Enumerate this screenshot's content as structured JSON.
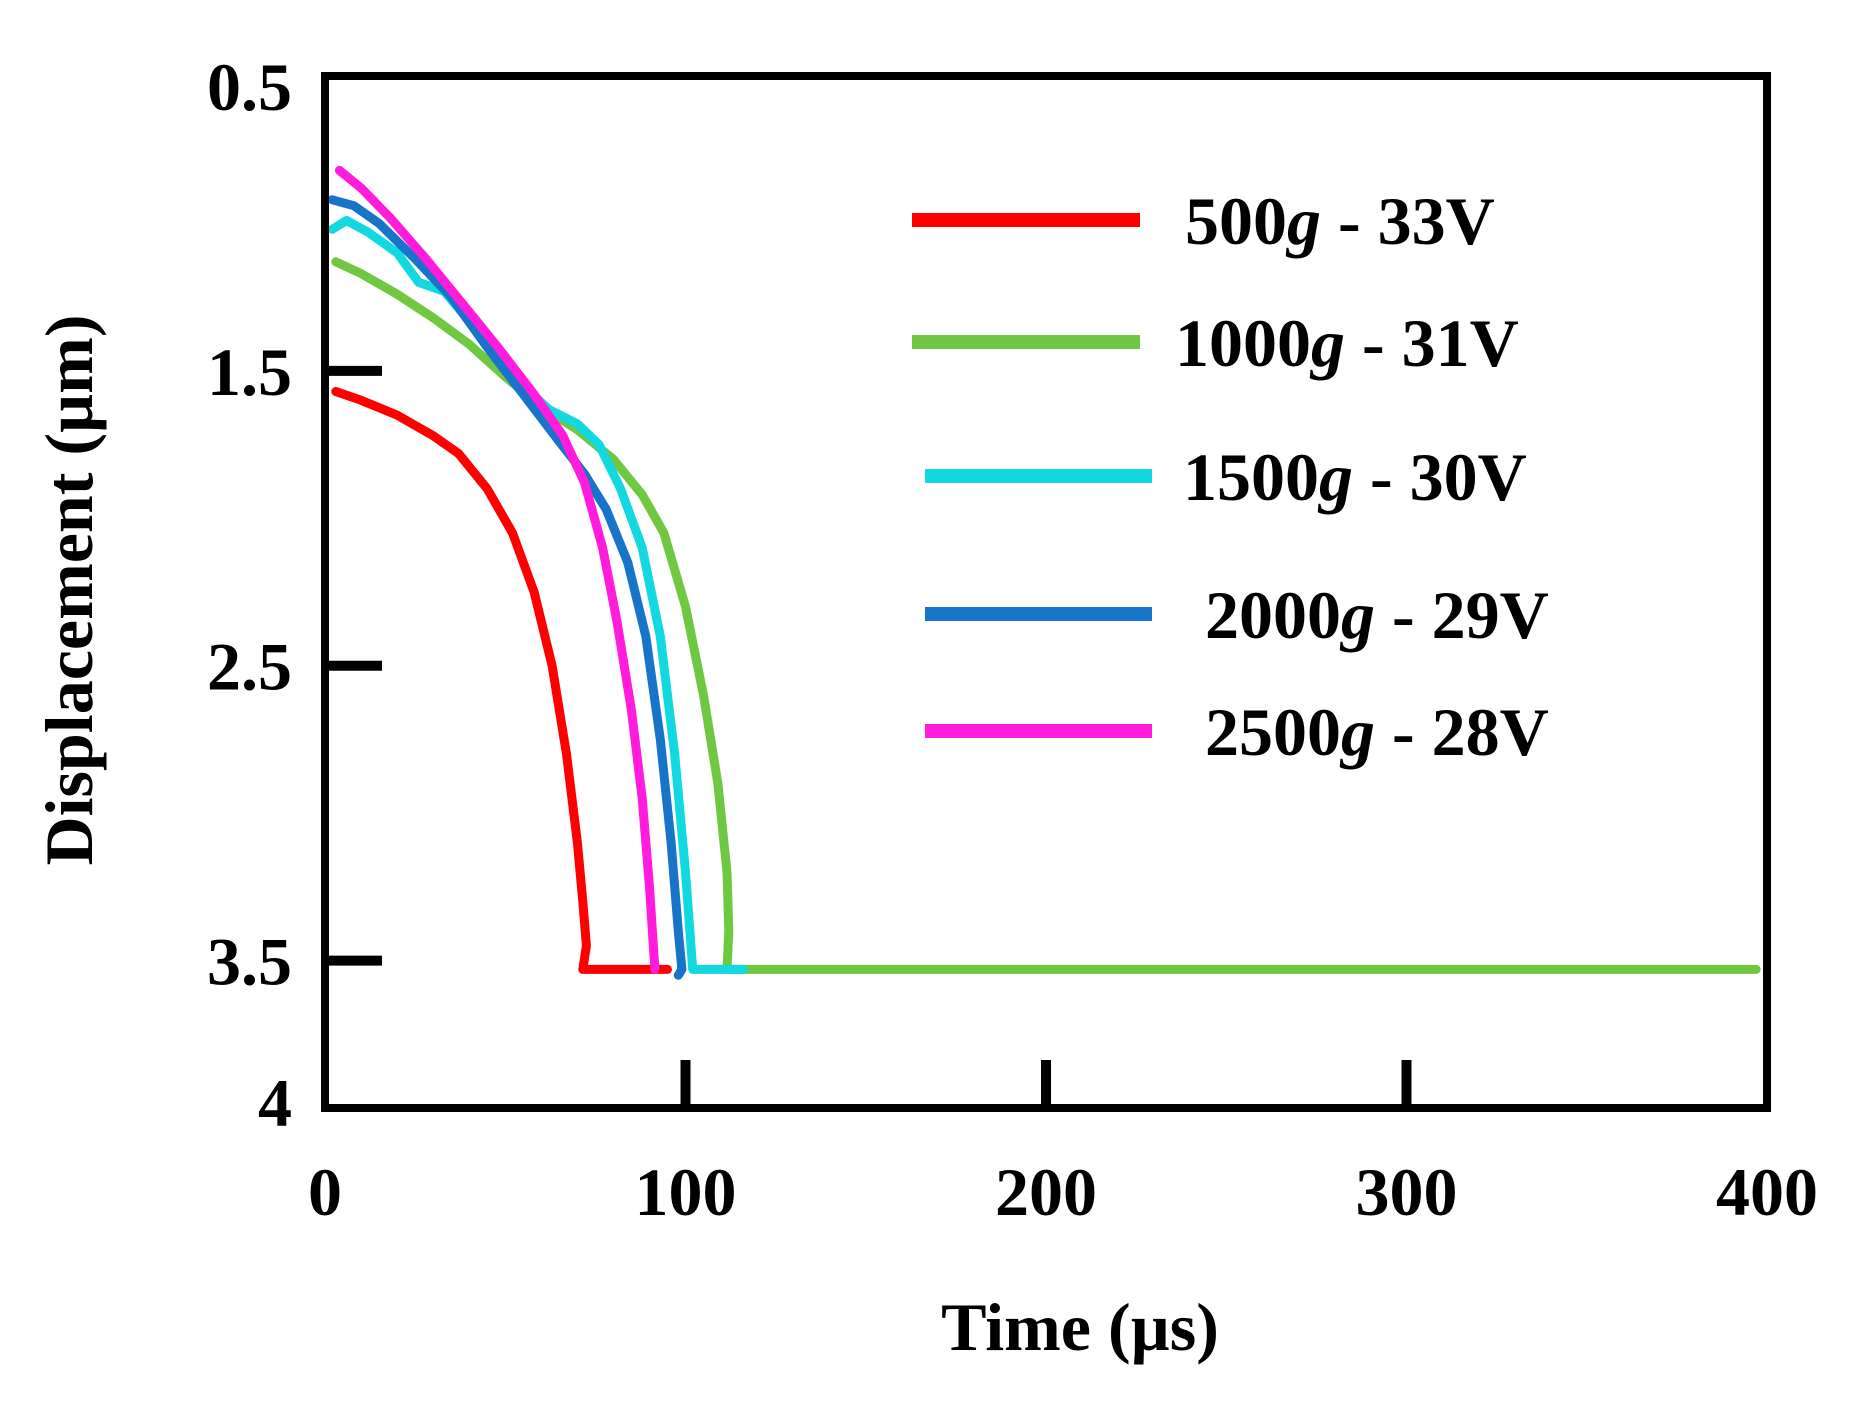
{
  "chart_data": {
    "type": "line",
    "title": "",
    "xlabel": "Time (µs)",
    "ylabel": "Displacement (µm)",
    "xlim": [
      0,
      400
    ],
    "ylim": [
      0.5,
      4
    ],
    "y_inverted": true,
    "x_ticks": [
      0,
      100,
      200,
      300,
      400
    ],
    "x_tick_labels": [
      "0",
      "100",
      "200",
      "300",
      "400"
    ],
    "y_ticks": [
      0.5,
      1.5,
      2.5,
      3.5,
      4
    ],
    "y_tick_labels": [
      "0.5",
      "1.5",
      "2.5",
      "3.5",
      "4"
    ],
    "grid": false,
    "legend_position": "top-right",
    "series": [
      {
        "name": "500g - 33V",
        "legend_prefix": "500",
        "legend_unit": "g",
        "legend_suffix": " - 33V",
        "color": "#ff0000",
        "points": [
          [
            3,
            1.57
          ],
          [
            10,
            1.6
          ],
          [
            20,
            1.65
          ],
          [
            30,
            1.72
          ],
          [
            37,
            1.78
          ],
          [
            45,
            1.9
          ],
          [
            52,
            2.05
          ],
          [
            58,
            2.25
          ],
          [
            63,
            2.5
          ],
          [
            67,
            2.8
          ],
          [
            70,
            3.1
          ],
          [
            71.5,
            3.3
          ],
          [
            72.5,
            3.45
          ],
          [
            71.5,
            3.53
          ],
          [
            75,
            3.53
          ],
          [
            95,
            3.53
          ]
        ]
      },
      {
        "name": "1000g - 31V",
        "legend_prefix": "1000",
        "legend_unit": "g",
        "legend_suffix": " - 31V",
        "color": "#70c842",
        "points": [
          [
            3,
            1.13
          ],
          [
            10,
            1.17
          ],
          [
            20,
            1.24
          ],
          [
            30,
            1.32
          ],
          [
            40,
            1.41
          ],
          [
            50,
            1.52
          ],
          [
            60,
            1.62
          ],
          [
            70,
            1.7
          ],
          [
            80,
            1.8
          ],
          [
            88,
            1.92
          ],
          [
            94,
            2.05
          ],
          [
            100,
            2.3
          ],
          [
            105,
            2.6
          ],
          [
            109,
            2.9
          ],
          [
            111.5,
            3.2
          ],
          [
            112,
            3.4
          ],
          [
            111.5,
            3.53
          ],
          [
            120,
            3.53
          ],
          [
            200,
            3.53
          ],
          [
            300,
            3.53
          ],
          [
            397,
            3.53
          ]
        ]
      },
      {
        "name": "1500g - 30V",
        "legend_prefix": "1500",
        "legend_unit": "g",
        "legend_suffix": " - 30V",
        "color": "#12d9e0",
        "points": [
          [
            2,
            1.02
          ],
          [
            6,
            0.99
          ],
          [
            12,
            1.03
          ],
          [
            20,
            1.1
          ],
          [
            26,
            1.2
          ],
          [
            33,
            1.23
          ],
          [
            40,
            1.33
          ],
          [
            48,
            1.45
          ],
          [
            55,
            1.55
          ],
          [
            62,
            1.63
          ],
          [
            70,
            1.68
          ],
          [
            76,
            1.75
          ],
          [
            82,
            1.9
          ],
          [
            88,
            2.1
          ],
          [
            93,
            2.4
          ],
          [
            97,
            2.8
          ],
          [
            100,
            3.2
          ],
          [
            102,
            3.53
          ],
          [
            108,
            3.53
          ],
          [
            116,
            3.53
          ]
        ]
      },
      {
        "name": "2000g - 29V",
        "legend_prefix": "2000",
        "legend_unit": "g",
        "legend_suffix": " - 29V",
        "color": "#1874c9",
        "points": [
          [
            2,
            0.92
          ],
          [
            8,
            0.94
          ],
          [
            15,
            1.0
          ],
          [
            25,
            1.12
          ],
          [
            35,
            1.25
          ],
          [
            45,
            1.42
          ],
          [
            55,
            1.58
          ],
          [
            65,
            1.74
          ],
          [
            72,
            1.85
          ],
          [
            78,
            1.97
          ],
          [
            84,
            2.15
          ],
          [
            89,
            2.4
          ],
          [
            93,
            2.75
          ],
          [
            96,
            3.1
          ],
          [
            98,
            3.4
          ],
          [
            99,
            3.53
          ],
          [
            98,
            3.55
          ]
        ]
      },
      {
        "name": "2500g - 28V",
        "legend_prefix": "2500",
        "legend_unit": "g",
        "legend_suffix": " - 28V",
        "color": "#ff1cdc",
        "points": [
          [
            4,
            0.82
          ],
          [
            10,
            0.88
          ],
          [
            18,
            0.98
          ],
          [
            28,
            1.12
          ],
          [
            38,
            1.27
          ],
          [
            48,
            1.42
          ],
          [
            58,
            1.58
          ],
          [
            66,
            1.72
          ],
          [
            72,
            1.88
          ],
          [
            77,
            2.1
          ],
          [
            81,
            2.35
          ],
          [
            85,
            2.65
          ],
          [
            88,
            2.95
          ],
          [
            90,
            3.25
          ],
          [
            91.5,
            3.53
          ]
        ]
      }
    ]
  }
}
